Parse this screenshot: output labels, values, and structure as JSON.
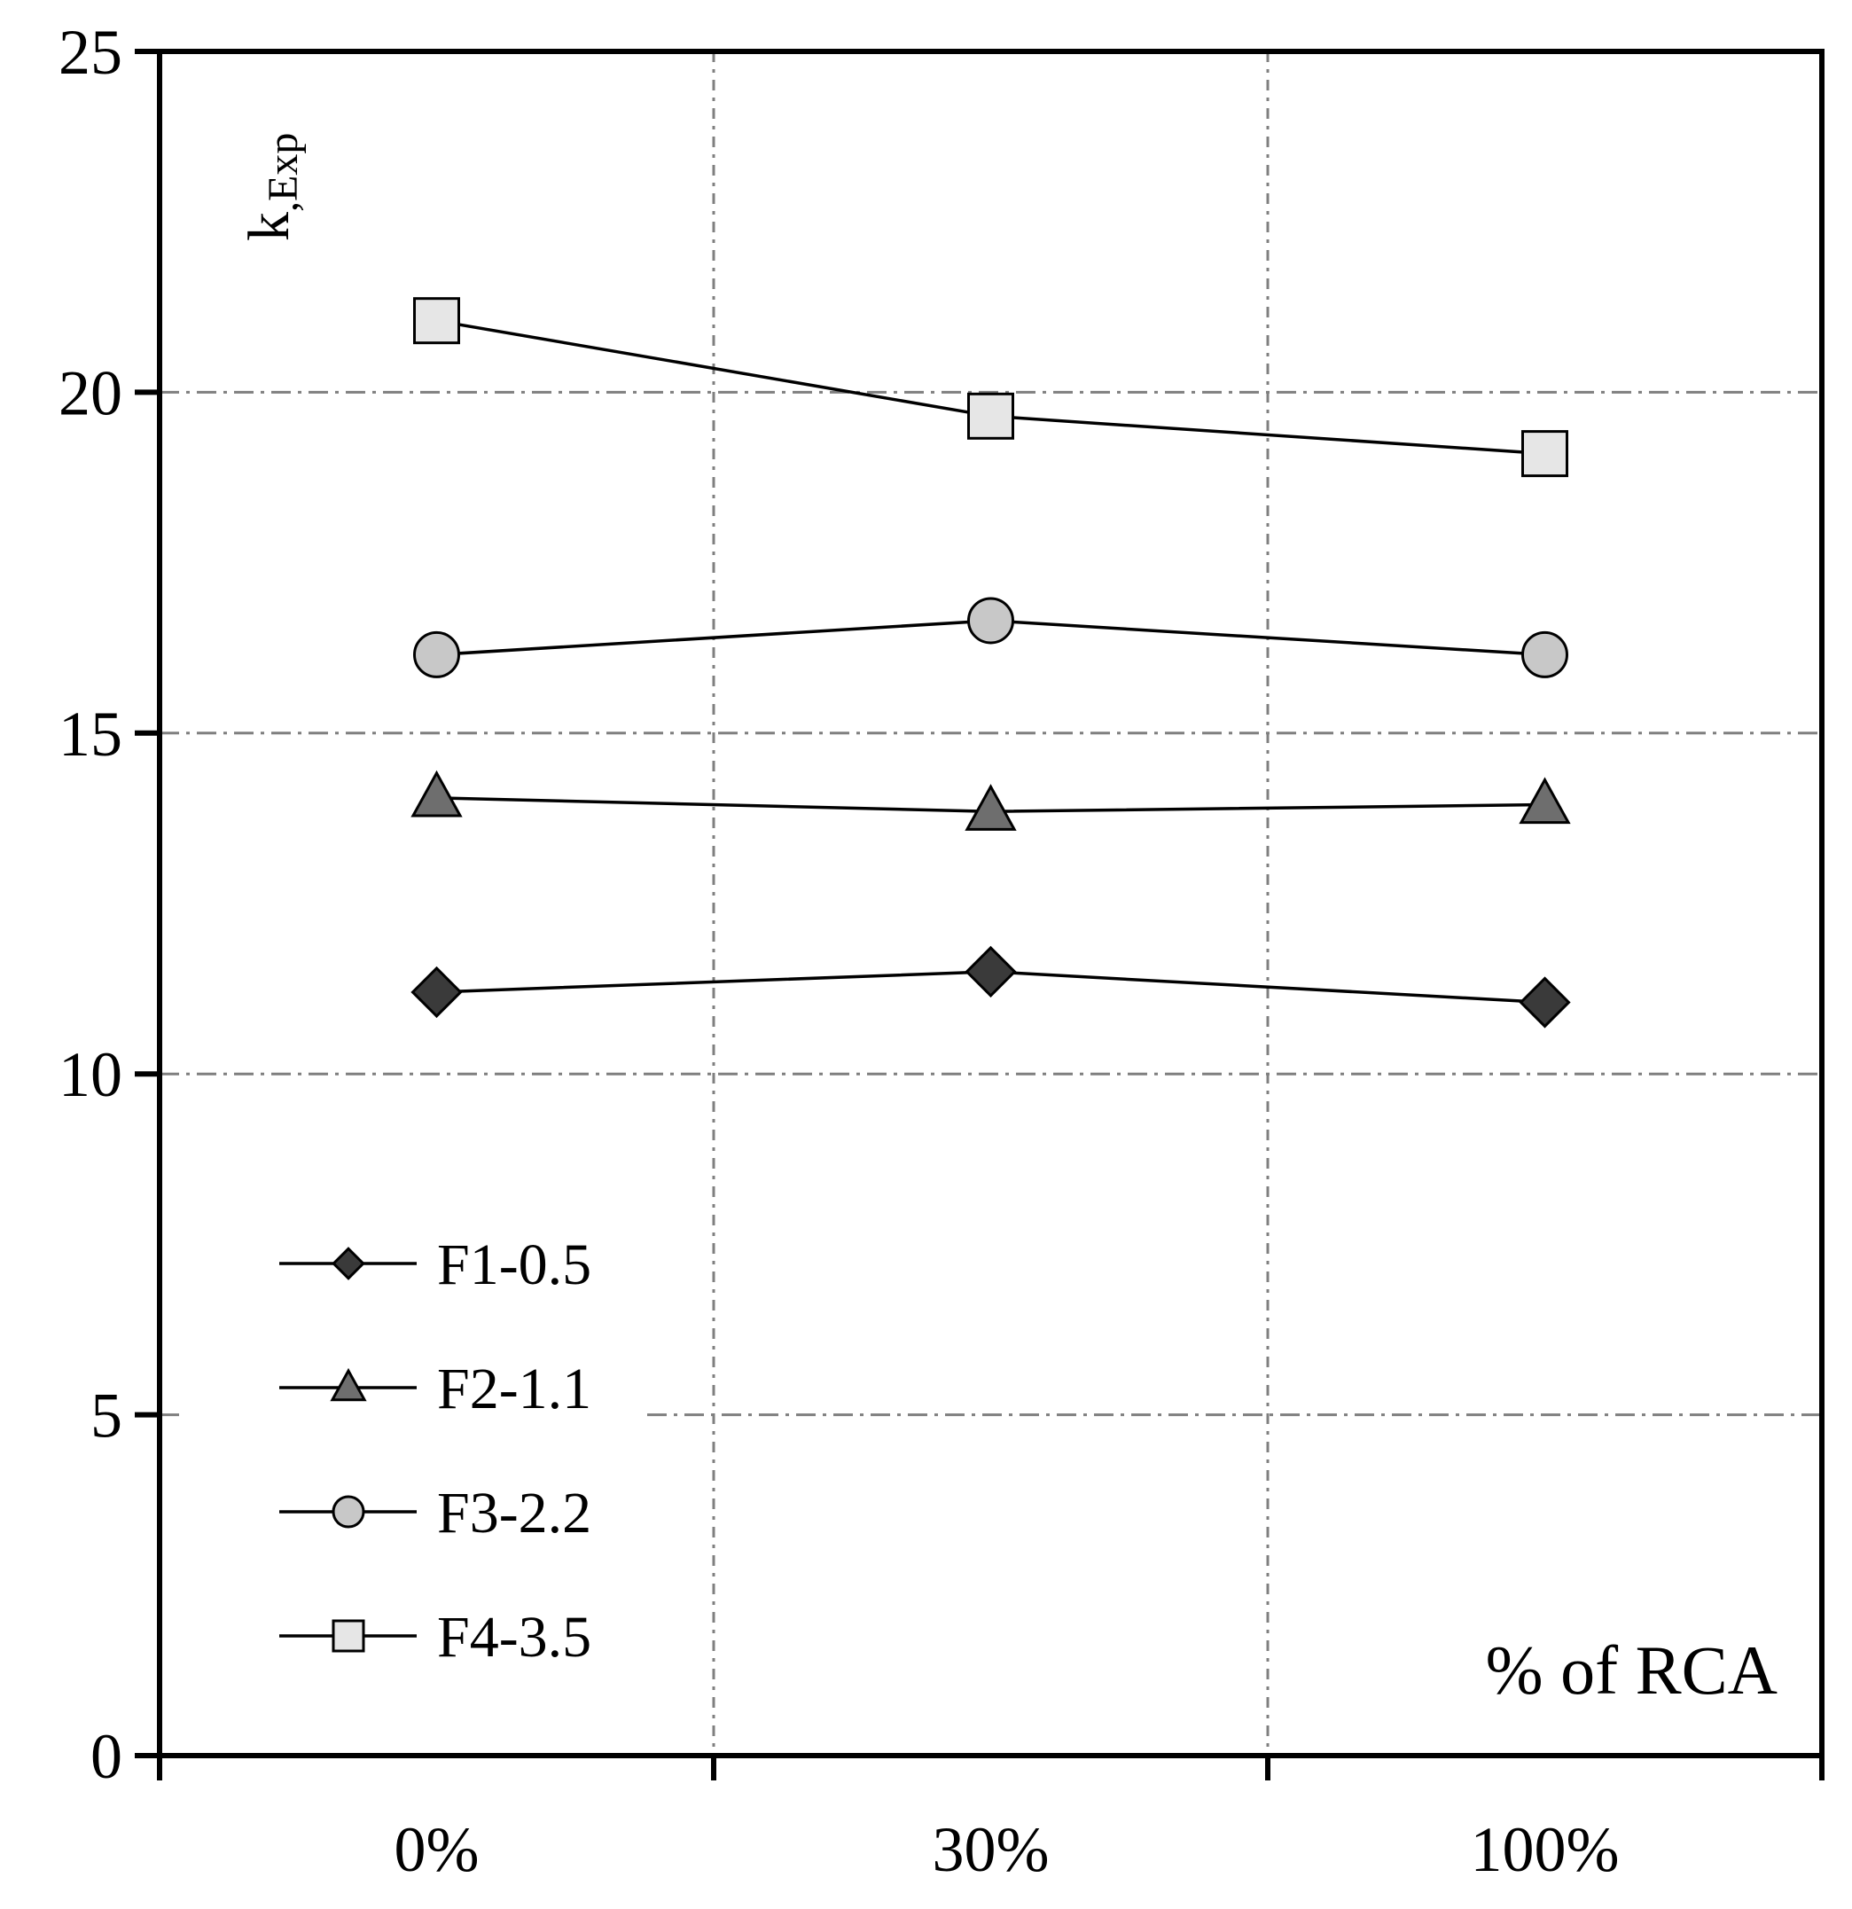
{
  "chart_data": {
    "type": "line",
    "title": "",
    "xlabel": "% of RCA",
    "ylabel": "k",
    "ylabel_subscript": ",Exp",
    "categories": [
      "0%",
      "30%",
      "100%"
    ],
    "ylim": [
      0,
      25
    ],
    "yticks": [
      0,
      5,
      10,
      15,
      20,
      25
    ],
    "grid": true,
    "legend_position": "bottom-left",
    "series": [
      {
        "name": "F1-0.5",
        "marker": "diamond",
        "fill": "#3a3a3a",
        "values": [
          11.2,
          11.5,
          11.05
        ]
      },
      {
        "name": "F2-1.1",
        "marker": "triangle",
        "fill": "#6e6e6e",
        "values": [
          14.05,
          13.85,
          13.95
        ]
      },
      {
        "name": "F3-2.2",
        "marker": "circle",
        "fill": "#c8c8c8",
        "values": [
          16.15,
          16.65,
          16.15
        ]
      },
      {
        "name": "F4-3.5",
        "marker": "square",
        "fill": "#e6e6e6",
        "values": [
          21.05,
          19.65,
          19.1
        ]
      }
    ]
  }
}
